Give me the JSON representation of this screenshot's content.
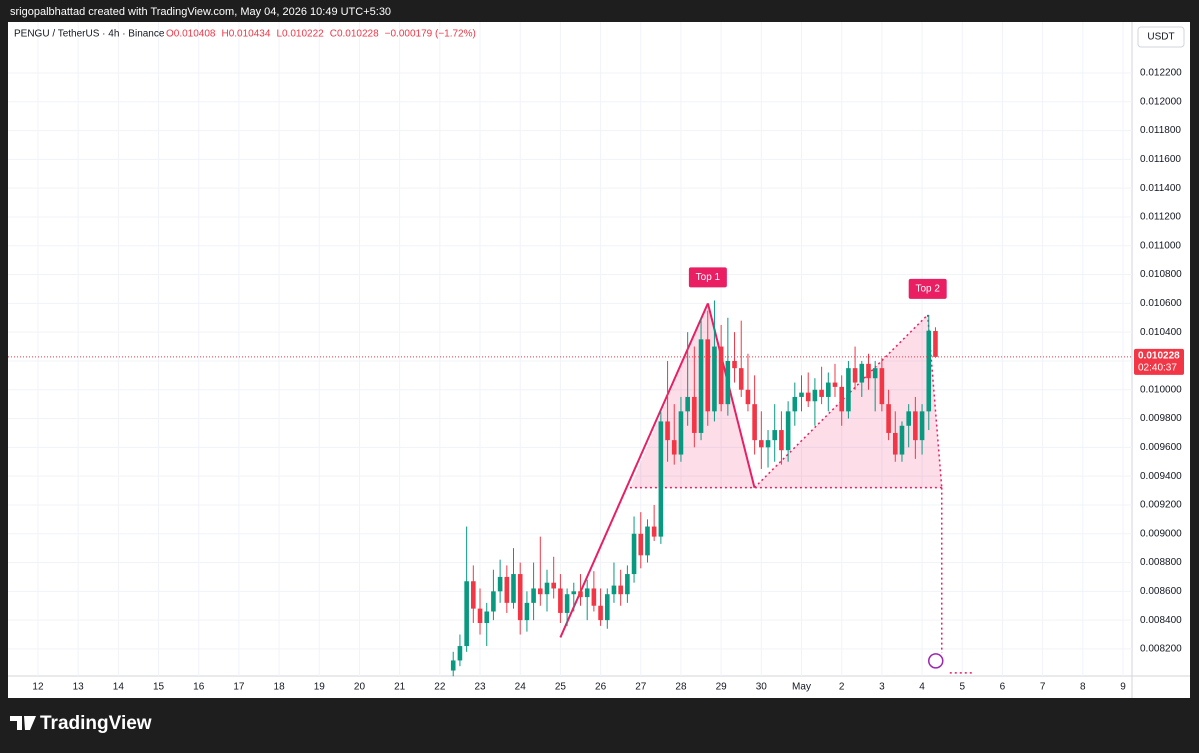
{
  "header": {
    "credit": "srigopalbhattad created with TradingView.com, May 04, 2026 10:49 UTC+5:30",
    "brand": "TradingView"
  },
  "chart_data": {
    "type": "candlestick",
    "symbol": "PENGU / TetherUS · 4h · Binance",
    "legend_values": [
      "O0.010408",
      "H0.010434",
      "L0.010222",
      "C0.010228",
      "−0.000179 (−1.72%)"
    ],
    "currency": "USDT",
    "countdown": "02:40:37",
    "up_color": "#089981",
    "down_color": "#f23645",
    "x": [
      10.333,
      10.5,
      10.667,
      10.833,
      11,
      11.167,
      11.333,
      11.5,
      11.667,
      11.833,
      12,
      12.167,
      12.333,
      12.5,
      12.667,
      12.833,
      13,
      13.167,
      13.333,
      13.5,
      13.667,
      13.833,
      14,
      14.167,
      14.333,
      14.5,
      14.667,
      14.833,
      15,
      15.167,
      15.333,
      15.5,
      15.667,
      15.833,
      16,
      16.167,
      16.333,
      16.5,
      16.667,
      16.833,
      17,
      17.167,
      17.333,
      17.5,
      17.667,
      17.833,
      18,
      18.167,
      18.333,
      18.5,
      18.667,
      18.833,
      19,
      19.167,
      19.333,
      19.5,
      19.667,
      19.833,
      20,
      20.167,
      20.333,
      20.5,
      20.667,
      20.833,
      21,
      21.167,
      21.333,
      21.5,
      21.667,
      21.833,
      22,
      22.167,
      22.333
    ],
    "open": [
      0.00805,
      0.00812,
      0.00822,
      0.00867,
      0.00848,
      0.00838,
      0.00846,
      0.0086,
      0.0087,
      0.00852,
      0.00872,
      0.0084,
      0.00852,
      0.00862,
      0.00858,
      0.00866,
      0.00862,
      0.00845,
      0.00858,
      0.0086,
      0.00856,
      0.00862,
      0.0085,
      0.0084,
      0.00858,
      0.00864,
      0.00858,
      0.00872,
      0.009,
      0.00885,
      0.00905,
      0.00898,
      0.00978,
      0.00965,
      0.00955,
      0.00985,
      0.00995,
      0.0097,
      0.01035,
      0.00985,
      0.0103,
      0.0099,
      0.0102,
      0.01015,
      0.01,
      0.0099,
      0.00965,
      0.0096,
      0.00965,
      0.00972,
      0.00958,
      0.00985,
      0.00995,
      0.00998,
      0.00992,
      0.01,
      0.00995,
      0.01005,
      0.01002,
      0.00985,
      0.01015,
      0.01005,
      0.01018,
      0.01008,
      0.01015,
      0.0099,
      0.0097,
      0.00955,
      0.00975,
      0.00985,
      0.00965,
      0.00985,
      0.010408
    ],
    "high": [
      0.00818,
      0.0083,
      0.00905,
      0.00878,
      0.00862,
      0.00852,
      0.00875,
      0.00882,
      0.00878,
      0.0089,
      0.0088,
      0.0086,
      0.0088,
      0.00898,
      0.00875,
      0.00884,
      0.00872,
      0.00862,
      0.00866,
      0.00872,
      0.00868,
      0.00874,
      0.00862,
      0.00862,
      0.0088,
      0.00875,
      0.00878,
      0.00912,
      0.00915,
      0.0091,
      0.0092,
      0.00985,
      0.0102,
      0.0099,
      0.00995,
      0.0104,
      0.0103,
      0.0105,
      0.01055,
      0.01062,
      0.01045,
      0.0105,
      0.0104,
      0.01048,
      0.01025,
      0.0101,
      0.00985,
      0.00972,
      0.0099,
      0.00985,
      0.00992,
      0.01005,
      0.0101,
      0.01012,
      0.01008,
      0.01016,
      0.01012,
      0.01018,
      0.0101,
      0.0102,
      0.0103,
      0.0102,
      0.01025,
      0.0102,
      0.01022,
      0.01,
      0.00985,
      0.00978,
      0.0099,
      0.00995,
      0.0099,
      0.01052,
      0.010434
    ],
    "low": [
      0.00801,
      0.00808,
      0.00818,
      0.00838,
      0.0083,
      0.00822,
      0.0084,
      0.00852,
      0.00845,
      0.00848,
      0.0083,
      0.00832,
      0.0084,
      0.0085,
      0.00846,
      0.00855,
      0.00838,
      0.00836,
      0.00846,
      0.0085,
      0.0084,
      0.00846,
      0.00836,
      0.00834,
      0.00852,
      0.0085,
      0.00852,
      0.00866,
      0.00876,
      0.0088,
      0.00895,
      0.00893,
      0.0095,
      0.00948,
      0.0095,
      0.00975,
      0.0096,
      0.00965,
      0.00975,
      0.00978,
      0.00985,
      0.00982,
      0.01005,
      0.00995,
      0.00985,
      0.00955,
      0.00945,
      0.00946,
      0.0095,
      0.00948,
      0.0095,
      0.00975,
      0.00985,
      0.00988,
      0.00975,
      0.0099,
      0.00985,
      0.00995,
      0.00975,
      0.0098,
      0.01,
      0.00995,
      0.01,
      0.00985,
      0.00985,
      0.00965,
      0.0095,
      0.0095,
      0.0096,
      0.00952,
      0.00955,
      0.00972,
      0.010222
    ],
    "close": [
      0.00812,
      0.00822,
      0.00867,
      0.00848,
      0.00838,
      0.00846,
      0.0086,
      0.0087,
      0.00852,
      0.00872,
      0.0084,
      0.00852,
      0.00862,
      0.00858,
      0.00866,
      0.00862,
      0.00845,
      0.00858,
      0.0086,
      0.00856,
      0.00862,
      0.0085,
      0.0084,
      0.00858,
      0.00864,
      0.00858,
      0.00872,
      0.009,
      0.00885,
      0.00905,
      0.00898,
      0.00978,
      0.00965,
      0.00955,
      0.00985,
      0.00995,
      0.0097,
      0.01035,
      0.00985,
      0.0103,
      0.0099,
      0.0102,
      0.01015,
      0.01,
      0.0099,
      0.00965,
      0.0096,
      0.00965,
      0.00972,
      0.00958,
      0.00985,
      0.00995,
      0.00998,
      0.00992,
      0.01,
      0.00995,
      0.01005,
      0.01002,
      0.00985,
      0.01015,
      0.01005,
      0.01018,
      0.01008,
      0.01015,
      0.0099,
      0.0097,
      0.00955,
      0.00975,
      0.00985,
      0.00965,
      0.00985,
      0.01041,
      0.010228
    ],
    "pattern": {
      "color": "#e91e63",
      "labels": [
        "Top 1",
        "Top 2"
      ],
      "points": [
        {
          "x": 13.0,
          "y": 0.00828
        },
        {
          "x": 16.67,
          "y": 0.0106
        },
        {
          "x": 17.83,
          "y": 0.00932
        },
        {
          "x": 22.14,
          "y": 0.01052
        },
        {
          "x": 22.49,
          "y": 0.00932
        }
      ],
      "neck_start": 14.73,
      "target": 0.008117,
      "target_end": 23.3
    },
    "xlim": [
      -0.746,
      27.224
    ],
    "xticks": [
      {
        "value": 0,
        "label": "12"
      },
      {
        "value": 1,
        "label": "13"
      },
      {
        "value": 2,
        "label": "14"
      },
      {
        "value": 3,
        "label": "15"
      },
      {
        "value": 4,
        "label": "16"
      },
      {
        "value": 5,
        "label": "17"
      },
      {
        "value": 6,
        "label": "18"
      },
      {
        "value": 7,
        "label": "19"
      },
      {
        "value": 8,
        "label": "20"
      },
      {
        "value": 9,
        "label": "21"
      },
      {
        "value": 10,
        "label": "22"
      },
      {
        "value": 11,
        "label": "23"
      },
      {
        "value": 12,
        "label": "24"
      },
      {
        "value": 13,
        "label": "25"
      },
      {
        "value": 14,
        "label": "26"
      },
      {
        "value": 15,
        "label": "27"
      },
      {
        "value": 16,
        "label": "28"
      },
      {
        "value": 17,
        "label": "29"
      },
      {
        "value": 18,
        "label": "30"
      },
      {
        "value": 19,
        "label": "May"
      },
      {
        "value": 20,
        "label": "2"
      },
      {
        "value": 21,
        "label": "3"
      },
      {
        "value": 22,
        "label": "4"
      },
      {
        "value": 23,
        "label": "5"
      },
      {
        "value": 24,
        "label": "6"
      },
      {
        "value": 25,
        "label": "7"
      },
      {
        "value": 26,
        "label": "8"
      },
      {
        "value": 27,
        "label": "9"
      }
    ],
    "ylim": [
      0.008012,
      0.012554
    ],
    "yticks": [
      {
        "value": 0.0082,
        "label": "0.008200"
      },
      {
        "value": 0.0084,
        "label": "0.008400"
      },
      {
        "value": 0.0086,
        "label": "0.008600"
      },
      {
        "value": 0.0088,
        "label": "0.008800"
      },
      {
        "value": 0.009,
        "label": "0.009000"
      },
      {
        "value": 0.0092,
        "label": "0.009200"
      },
      {
        "value": 0.0094,
        "label": "0.009400"
      },
      {
        "value": 0.0096,
        "label": "0.009600"
      },
      {
        "value": 0.0098,
        "label": "0.009800"
      },
      {
        "value": 0.01,
        "label": "0.010000"
      },
      {
        "value": 0.0102,
        "label": "0.010200"
      },
      {
        "value": 0.0104,
        "label": "0.010400"
      },
      {
        "value": 0.0106,
        "label": "0.010600"
      },
      {
        "value": 0.0108,
        "label": "0.010800"
      },
      {
        "value": 0.011,
        "label": "0.011000"
      },
      {
        "value": 0.0112,
        "label": "0.011200"
      },
      {
        "value": 0.0114,
        "label": "0.011400"
      },
      {
        "value": 0.0116,
        "label": "0.011600"
      },
      {
        "value": 0.0118,
        "label": "0.011800"
      },
      {
        "value": 0.012,
        "label": "0.012000"
      },
      {
        "value": 0.0122,
        "label": "0.012200"
      }
    ],
    "grid": true
  }
}
